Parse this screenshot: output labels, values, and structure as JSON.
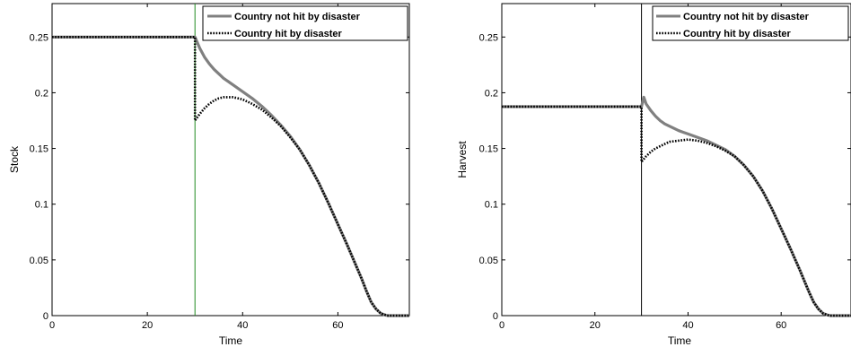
{
  "chart_data": [
    {
      "type": "line",
      "title": "",
      "xlabel": "Time",
      "ylabel": "Stock",
      "xlim": [
        0,
        75
      ],
      "ylim": [
        0,
        0.28
      ],
      "xticks": [
        0,
        20,
        40,
        60
      ],
      "xtick_labels": [
        "0",
        "20",
        "40",
        "60"
      ],
      "yticks": [
        0,
        0.05,
        0.1,
        0.15,
        0.2,
        0.25
      ],
      "ytick_labels": [
        "0",
        "0.05",
        "0.1",
        "0.15",
        "0.2",
        "0.25"
      ],
      "grid": false,
      "legend_position": "top-right",
      "vline": {
        "x": 30,
        "color": "#228b22"
      },
      "series": [
        {
          "name": "Country not hit by disaster",
          "color": "#808080",
          "style": "solid",
          "x": [
            0,
            30,
            30.5,
            31,
            32,
            33,
            34,
            35,
            36,
            38,
            40,
            42,
            44,
            46,
            48,
            50,
            52,
            54,
            56,
            58,
            60,
            62,
            64,
            65,
            66,
            67,
            68,
            69,
            70,
            70.5,
            71,
            72,
            73,
            75
          ],
          "y": [
            0.25,
            0.25,
            0.245,
            0.24,
            0.232,
            0.226,
            0.221,
            0.217,
            0.213,
            0.207,
            0.201,
            0.195,
            0.188,
            0.18,
            0.171,
            0.161,
            0.149,
            0.135,
            0.119,
            0.101,
            0.082,
            0.063,
            0.043,
            0.033,
            0.022,
            0.012,
            0.006,
            0.002,
            0.0005,
            0,
            0,
            0,
            0,
            0
          ]
        },
        {
          "name": "Country hit by disaster",
          "color": "#000000",
          "style": "dotted",
          "x": [
            0,
            30,
            30,
            31,
            32,
            33,
            34,
            35,
            36,
            38,
            40,
            42,
            44,
            46,
            48,
            50,
            52,
            54,
            56,
            58,
            60,
            62,
            64,
            65,
            66,
            67,
            68,
            69,
            70,
            70.5,
            71,
            72,
            73,
            75
          ],
          "y": [
            0.25,
            0.25,
            0.175,
            0.181,
            0.186,
            0.19,
            0.193,
            0.195,
            0.196,
            0.196,
            0.194,
            0.19,
            0.185,
            0.178,
            0.17,
            0.16,
            0.149,
            0.135,
            0.119,
            0.101,
            0.082,
            0.063,
            0.043,
            0.033,
            0.022,
            0.012,
            0.006,
            0.002,
            0.0005,
            0,
            0,
            0,
            0,
            0
          ]
        }
      ]
    },
    {
      "type": "line",
      "title": "",
      "xlabel": "Time",
      "ylabel": "Harvest",
      "xlim": [
        0,
        75
      ],
      "ylim": [
        0,
        0.28
      ],
      "xticks": [
        0,
        20,
        40,
        60
      ],
      "xtick_labels": [
        "0",
        "20",
        "40",
        "60"
      ],
      "yticks": [
        0,
        0.05,
        0.1,
        0.15,
        0.2,
        0.25
      ],
      "ytick_labels": [
        "0",
        "0.05",
        "0.1",
        "0.15",
        "0.2",
        "0.25"
      ],
      "grid": false,
      "legend_position": "top-right",
      "vline": {
        "x": 30,
        "color": "#000000"
      },
      "series": [
        {
          "name": "Country not hit by disaster",
          "color": "#808080",
          "style": "solid",
          "x": [
            0,
            30,
            30.5,
            31,
            32,
            33,
            34,
            35,
            36,
            38,
            40,
            42,
            44,
            46,
            48,
            50,
            52,
            54,
            56,
            58,
            60,
            62,
            64,
            65,
            66,
            67,
            68,
            69,
            70,
            70.5,
            71,
            72,
            73,
            75
          ],
          "y": [
            0.1875,
            0.1875,
            0.196,
            0.19,
            0.184,
            0.179,
            0.175,
            0.172,
            0.17,
            0.166,
            0.163,
            0.16,
            0.157,
            0.153,
            0.149,
            0.143,
            0.135,
            0.125,
            0.112,
            0.096,
            0.078,
            0.06,
            0.041,
            0.031,
            0.021,
            0.012,
            0.006,
            0.002,
            0.0005,
            0,
            0,
            0,
            0,
            0
          ]
        },
        {
          "name": "Country hit by disaster",
          "color": "#000000",
          "style": "dotted",
          "x": [
            0,
            30,
            30,
            31,
            32,
            33,
            34,
            35,
            36,
            38,
            40,
            42,
            44,
            46,
            48,
            50,
            52,
            54,
            56,
            58,
            60,
            62,
            64,
            65,
            66,
            67,
            68,
            69,
            70,
            70.5,
            71,
            72,
            73,
            75
          ],
          "y": [
            0.1875,
            0.1875,
            0.138,
            0.143,
            0.147,
            0.15,
            0.152,
            0.154,
            0.156,
            0.157,
            0.158,
            0.157,
            0.155,
            0.152,
            0.148,
            0.143,
            0.135,
            0.125,
            0.112,
            0.096,
            0.078,
            0.06,
            0.041,
            0.031,
            0.021,
            0.012,
            0.006,
            0.002,
            0.0005,
            0,
            0,
            0,
            0,
            0
          ]
        }
      ]
    }
  ]
}
